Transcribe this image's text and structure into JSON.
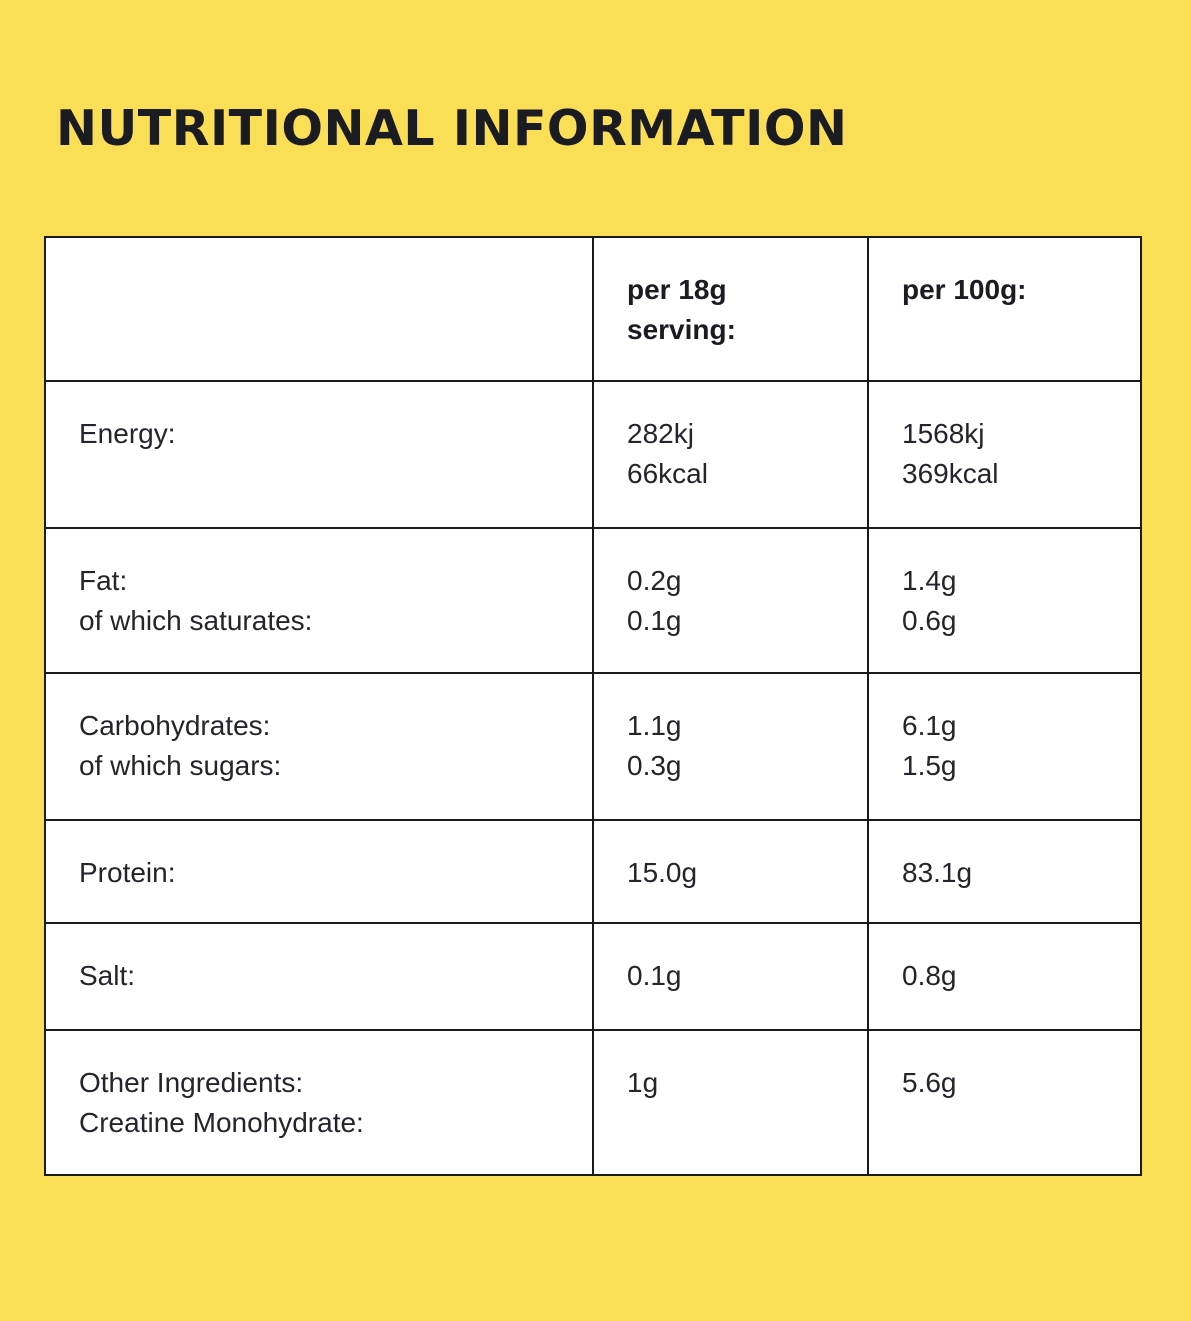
{
  "title": "NUTRITIONAL INFORMATION",
  "colors": {
    "background": "#FADE55",
    "table_background": "#FFFFFF",
    "border": "#1A1A1A",
    "text": "#1E1E26"
  },
  "table": {
    "header": {
      "label_col": "",
      "serving_col": [
        "per 18g",
        "serving:"
      ],
      "per100g_col": [
        "per 100g:"
      ]
    },
    "rows": [
      {
        "label": [
          "Energy:"
        ],
        "serving": [
          "282kj",
          "66kcal"
        ],
        "per100g": [
          "1568kj",
          "369kcal"
        ]
      },
      {
        "label": [
          "Fat:",
          "of which saturates:"
        ],
        "serving": [
          "0.2g",
          "0.1g"
        ],
        "per100g": [
          "1.4g",
          "0.6g"
        ]
      },
      {
        "label": [
          "Carbohydrates:",
          "of which sugars:"
        ],
        "serving": [
          "1.1g",
          "0.3g"
        ],
        "per100g": [
          "6.1g",
          "1.5g"
        ]
      },
      {
        "label": [
          "Protein:"
        ],
        "serving": [
          "15.0g"
        ],
        "per100g": [
          "83.1g"
        ]
      },
      {
        "label": [
          "Salt:"
        ],
        "serving": [
          "0.1g"
        ],
        "per100g": [
          "0.8g"
        ]
      },
      {
        "label": [
          "Other Ingredients:",
          "Creatine Monohydrate:"
        ],
        "serving": [
          "1g"
        ],
        "per100g": [
          "5.6g"
        ]
      }
    ]
  }
}
